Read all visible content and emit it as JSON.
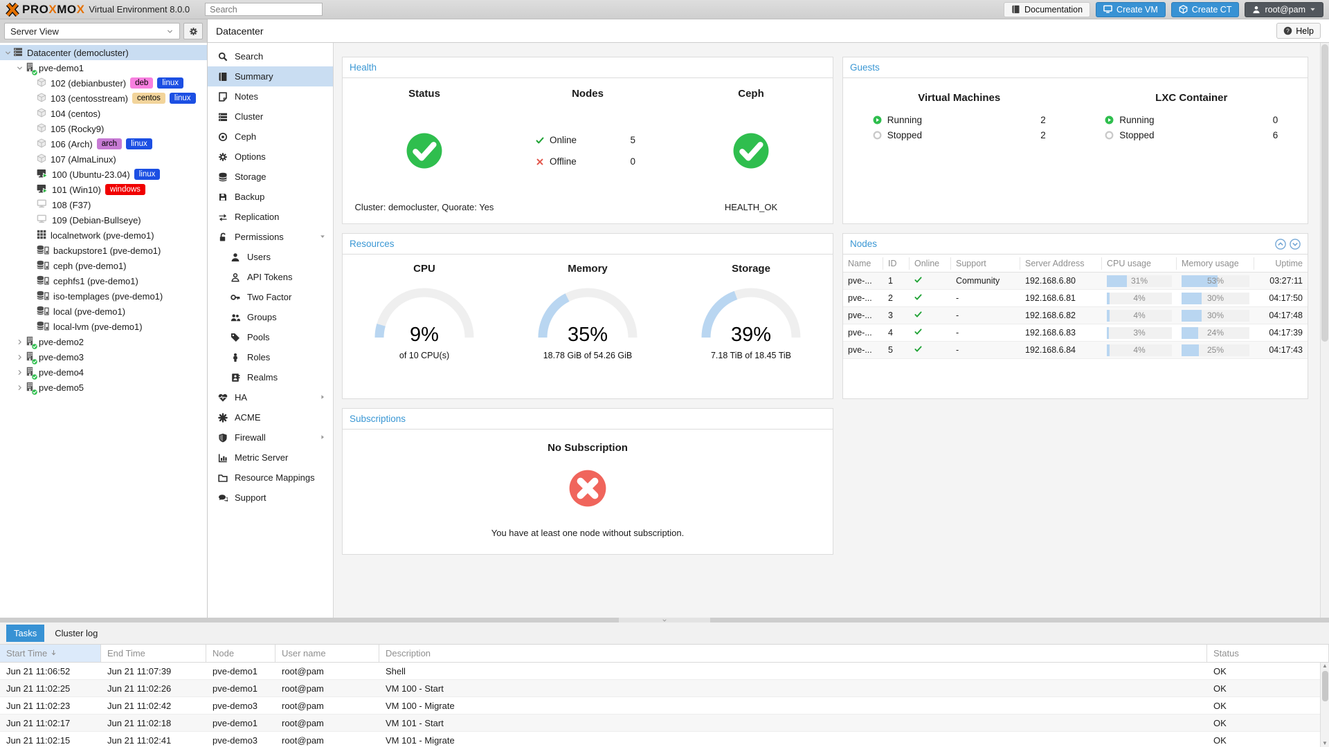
{
  "topbar": {
    "brand": {
      "p1": "PRO",
      "p2": "X",
      "p3": "MO",
      "p4": "X"
    },
    "product": "Virtual Environment 8.0.0",
    "search_placeholder": "Search",
    "documentation_label": "Documentation",
    "create_vm_label": "Create VM",
    "create_ct_label": "Create CT",
    "user_label": "root@pam"
  },
  "sidebar": {
    "view_selector": "Server View",
    "tree": [
      {
        "icon": "datacenter",
        "label": "Datacenter (democluster)",
        "level": 0,
        "expander": "open",
        "selected": true
      },
      {
        "icon": "node",
        "label": "pve-demo1",
        "level": 1,
        "expander": "open"
      },
      {
        "icon": "cube",
        "label": "102 (debianbuster)",
        "level": 2,
        "tags": [
          {
            "text": "deb",
            "bg": "#f77fdf",
            "fg": "#000000"
          },
          {
            "text": "linux",
            "bg": "#1c4fe3",
            "fg": "#ffffff"
          }
        ]
      },
      {
        "icon": "cube",
        "label": "103 (centosstream)",
        "level": 2,
        "tags": [
          {
            "text": "centos",
            "bg": "#f2d49b",
            "fg": "#000000"
          },
          {
            "text": "linux",
            "bg": "#1c4fe3",
            "fg": "#ffffff"
          }
        ]
      },
      {
        "icon": "cube",
        "label": "104 (centos)",
        "level": 2
      },
      {
        "icon": "cube",
        "label": "105 (Rocky9)",
        "level": 2
      },
      {
        "icon": "cube",
        "label": "106 (Arch)",
        "level": 2,
        "tags": [
          {
            "text": "arch",
            "bg": "#c77bd4",
            "fg": "#000000"
          },
          {
            "text": "linux",
            "bg": "#1c4fe3",
            "fg": "#ffffff"
          }
        ]
      },
      {
        "icon": "cube",
        "label": "107 (AlmaLinux)",
        "level": 2
      },
      {
        "icon": "vm-running",
        "label": "100 (Ubuntu-23.04)",
        "level": 2,
        "tags": [
          {
            "text": "linux",
            "bg": "#1c4fe3",
            "fg": "#ffffff"
          }
        ]
      },
      {
        "icon": "vm-running",
        "label": "101 (Win10)",
        "level": 2,
        "tags": [
          {
            "text": "windows",
            "bg": "#f00000",
            "fg": "#ffffff"
          }
        ]
      },
      {
        "icon": "vm-stopped",
        "label": "108 (F37)",
        "level": 2
      },
      {
        "icon": "vm-stopped",
        "label": "109 (Debian-Bullseye)",
        "level": 2
      },
      {
        "icon": "network",
        "label": "localnetwork (pve-demo1)",
        "level": 2
      },
      {
        "icon": "storage",
        "label": "backupstore1 (pve-demo1)",
        "level": 2
      },
      {
        "icon": "storage",
        "label": "ceph (pve-demo1)",
        "level": 2
      },
      {
        "icon": "storage",
        "label": "cephfs1 (pve-demo1)",
        "level": 2
      },
      {
        "icon": "storage",
        "label": "iso-templages (pve-demo1)",
        "level": 2
      },
      {
        "icon": "storage",
        "label": "local (pve-demo1)",
        "level": 2
      },
      {
        "icon": "storage",
        "label": "local-lvm (pve-demo1)",
        "level": 2
      },
      {
        "icon": "node",
        "label": "pve-demo2",
        "level": 1,
        "expander": "closed"
      },
      {
        "icon": "node",
        "label": "pve-demo3",
        "level": 1,
        "expander": "closed"
      },
      {
        "icon": "node",
        "label": "pve-demo4",
        "level": 1,
        "expander": "closed"
      },
      {
        "icon": "node",
        "label": "pve-demo5",
        "level": 1,
        "expander": "closed"
      }
    ]
  },
  "content_header": {
    "title": "Datacenter",
    "help_label": "Help"
  },
  "nav": {
    "items": [
      {
        "icon": "search",
        "label": "Search"
      },
      {
        "icon": "book",
        "label": "Summary",
        "selected": true
      },
      {
        "icon": "note",
        "label": "Notes"
      },
      {
        "icon": "cluster",
        "label": "Cluster"
      },
      {
        "icon": "ceph",
        "label": "Ceph"
      },
      {
        "icon": "gear",
        "label": "Options"
      },
      {
        "icon": "storage-simple",
        "label": "Storage"
      },
      {
        "icon": "backup",
        "label": "Backup"
      },
      {
        "icon": "replication",
        "label": "Replication"
      },
      {
        "icon": "permissions",
        "label": "Permissions",
        "arrow": "down"
      },
      {
        "icon": "user",
        "label": "Users",
        "indent": true
      },
      {
        "icon": "api-tokens",
        "label": "API Tokens",
        "indent": true
      },
      {
        "icon": "two-factor",
        "label": "Two Factor",
        "indent": true
      },
      {
        "icon": "groups",
        "label": "Groups",
        "indent": true
      },
      {
        "icon": "pools",
        "label": "Pools",
        "indent": true
      },
      {
        "icon": "roles",
        "label": "Roles",
        "indent": true
      },
      {
        "icon": "realms",
        "label": "Realms",
        "indent": true
      },
      {
        "icon": "ha",
        "label": "HA",
        "arrow": "right"
      },
      {
        "icon": "acme",
        "label": "ACME"
      },
      {
        "icon": "firewall",
        "label": "Firewall",
        "arrow": "right"
      },
      {
        "icon": "metric-server",
        "label": "Metric Server"
      },
      {
        "icon": "resource-mappings",
        "label": "Resource Mappings"
      },
      {
        "icon": "support",
        "label": "Support"
      }
    ]
  },
  "panels": {
    "health": {
      "title": "Health",
      "status_heading": "Status",
      "status_note": "Cluster: democluster, Quorate: Yes",
      "nodes_heading": "Nodes",
      "online_label": "Online",
      "online_count": 5,
      "offline_label": "Offline",
      "offline_count": 0,
      "ceph_heading": "Ceph",
      "ceph_status": "HEALTH_OK"
    },
    "guests": {
      "title": "Guests",
      "vm_heading": "Virtual Machines",
      "ct_heading": "LXC Container",
      "running_label": "Running",
      "stopped_label": "Stopped",
      "vm_running": 2,
      "vm_stopped": 2,
      "ct_running": 0,
      "ct_stopped": 6
    },
    "resources": {
      "title": "Resources",
      "gauges": [
        {
          "heading": "CPU",
          "percent": 9,
          "display": "9%",
          "subtitle": "of 10 CPU(s)"
        },
        {
          "heading": "Memory",
          "percent": 35,
          "display": "35%",
          "subtitle": "18.78 GiB of 54.26 GiB"
        },
        {
          "heading": "Storage",
          "percent": 39,
          "display": "39%",
          "subtitle": "7.18 TiB of 18.45 TiB"
        }
      ]
    },
    "nodes": {
      "title": "Nodes",
      "columns": [
        "Name",
        "ID",
        "Online",
        "Support",
        "Server Address",
        "CPU usage",
        "Memory usage",
        "Uptime"
      ],
      "rows": [
        {
          "name": "pve-...",
          "id": "1",
          "online": true,
          "support": "Community",
          "address": "192.168.6.80",
          "cpu_pct": 31,
          "cpu_label": "31%",
          "mem_pct": 53,
          "mem_label": "53%",
          "uptime": "03:27:11"
        },
        {
          "name": "pve-...",
          "id": "2",
          "online": true,
          "support": "-",
          "address": "192.168.6.81",
          "cpu_pct": 4,
          "cpu_label": "4%",
          "mem_pct": 30,
          "mem_label": "30%",
          "uptime": "04:17:50"
        },
        {
          "name": "pve-...",
          "id": "3",
          "online": true,
          "support": "-",
          "address": "192.168.6.82",
          "cpu_pct": 4,
          "cpu_label": "4%",
          "mem_pct": 30,
          "mem_label": "30%",
          "uptime": "04:17:48"
        },
        {
          "name": "pve-...",
          "id": "4",
          "online": true,
          "support": "-",
          "address": "192.168.6.83",
          "cpu_pct": 3,
          "cpu_label": "3%",
          "mem_pct": 24,
          "mem_label": "24%",
          "uptime": "04:17:39"
        },
        {
          "name": "pve-...",
          "id": "5",
          "online": true,
          "support": "-",
          "address": "192.168.6.84",
          "cpu_pct": 4,
          "cpu_label": "4%",
          "mem_pct": 25,
          "mem_label": "25%",
          "uptime": "04:17:43"
        }
      ]
    },
    "subscriptions": {
      "title": "Subscriptions",
      "heading": "No Subscription",
      "message": "You have at least one node without subscription."
    }
  },
  "tasks": {
    "tabs": [
      {
        "label": "Tasks",
        "active": true
      },
      {
        "label": "Cluster log",
        "active": false
      }
    ],
    "columns": [
      "Start Time",
      "End Time",
      "Node",
      "User name",
      "Description",
      "Status"
    ],
    "rows": [
      {
        "start": "Jun 21 11:06:52",
        "end": "Jun 21 11:07:39",
        "node": "pve-demo1",
        "user": "root@pam",
        "description": "Shell",
        "status": "OK"
      },
      {
        "start": "Jun 21 11:02:25",
        "end": "Jun 21 11:02:26",
        "node": "pve-demo1",
        "user": "root@pam",
        "description": "VM 100 - Start",
        "status": "OK"
      },
      {
        "start": "Jun 21 11:02:23",
        "end": "Jun 21 11:02:42",
        "node": "pve-demo3",
        "user": "root@pam",
        "description": "VM 100 - Migrate",
        "status": "OK"
      },
      {
        "start": "Jun 21 11:02:17",
        "end": "Jun 21 11:02:18",
        "node": "pve-demo1",
        "user": "root@pam",
        "description": "VM 101 - Start",
        "status": "OK"
      },
      {
        "start": "Jun 21 11:02:15",
        "end": "Jun 21 11:02:41",
        "node": "pve-demo3",
        "user": "root@pam",
        "description": "VM 101 - Migrate",
        "status": "OK"
      }
    ]
  },
  "colors": {
    "accent_blue": "#3892d4",
    "panel_title_blue": "#3a97d4",
    "ok_green": "#2fbe4e",
    "error_red": "#f0655c",
    "gauge_fill": "#b9d6f1",
    "brand_orange": "#e57000"
  }
}
